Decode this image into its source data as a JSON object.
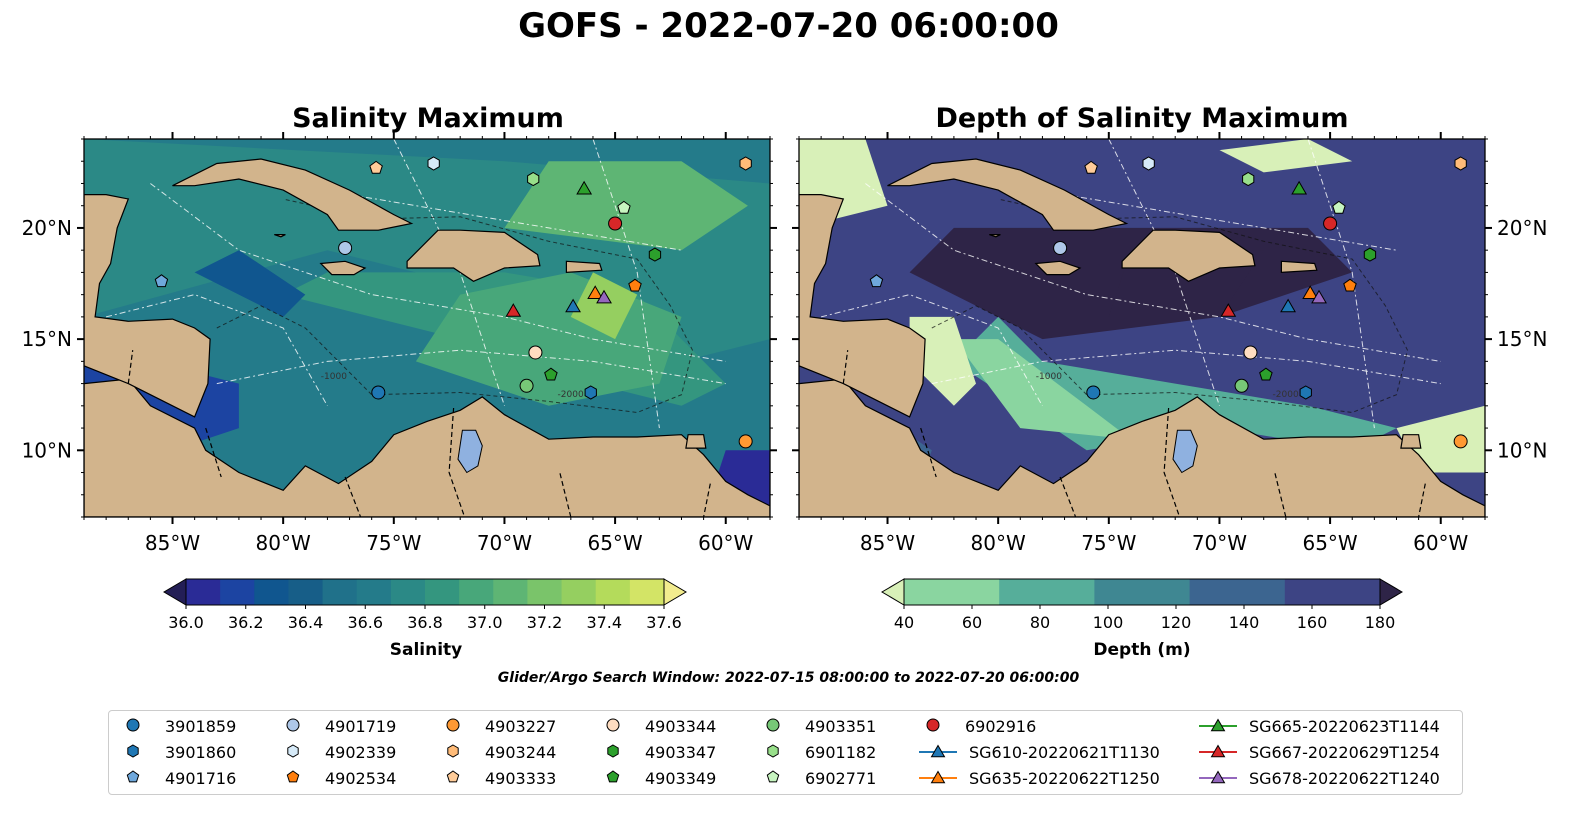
{
  "title": "GOFS - 2022-07-20 06:00:00",
  "search_window": "Glider/Argo Search Window: 2022-07-15 08:00:00 to 2022-07-20 06:00:00",
  "chart_data": [
    {
      "type": "heatmap",
      "title": "Salinity Maximum",
      "x_ticks": [
        "85°W",
        "80°W",
        "75°W",
        "70°W",
        "65°W",
        "60°W"
      ],
      "x_tick_values": [
        -85,
        -80,
        -75,
        -70,
        -65,
        -60
      ],
      "y_ticks": [
        "10°N",
        "15°N",
        "20°N"
      ],
      "y_tick_values": [
        10,
        15,
        20
      ],
      "xlim": [
        -89,
        -58
      ],
      "ylim": [
        7,
        24
      ],
      "colorbar": {
        "label": "Salinity",
        "ticks": [
          "36.0",
          "36.2",
          "36.4",
          "36.6",
          "36.8",
          "37.0",
          "37.2",
          "37.4",
          "37.6"
        ],
        "range": [
          36.0,
          37.6
        ],
        "extend": "both",
        "colors": [
          "#231e56",
          "#2a2b96",
          "#1c44a2",
          "#10568f",
          "#175e88",
          "#20718a",
          "#247b8a",
          "#2b8986",
          "#34967f",
          "#48a77a",
          "#5eb574",
          "#7ac46a",
          "#95cf60",
          "#b4db5b",
          "#d3e466",
          "#f2ec8e"
        ]
      }
    },
    {
      "type": "heatmap",
      "title": "Depth of Salinity Maximum",
      "x_ticks": [
        "85°W",
        "80°W",
        "75°W",
        "70°W",
        "65°W",
        "60°W"
      ],
      "x_tick_values": [
        -85,
        -80,
        -75,
        -70,
        -65,
        -60
      ],
      "y_ticks": [
        "10°N",
        "15°N",
        "20°N"
      ],
      "y_tick_values": [
        10,
        15,
        20
      ],
      "xlim": [
        -89,
        -58
      ],
      "ylim": [
        7,
        24
      ],
      "colorbar": {
        "label": "Depth (m)",
        "ticks": [
          "40",
          "60",
          "80",
          "100",
          "120",
          "140",
          "160",
          "180"
        ],
        "range": [
          40,
          180
        ],
        "extend": "both",
        "colors": [
          "#d8f0b8",
          "#8ad5a0",
          "#56ae9a",
          "#3f8792",
          "#3c6590",
          "#3d4484",
          "#2e2447"
        ]
      }
    }
  ],
  "observations": [
    {
      "id": "3901859",
      "lon": -75.7,
      "lat": 12.6,
      "marker": "circle",
      "color": "#1f77b4"
    },
    {
      "id": "3901860",
      "lon": -66.1,
      "lat": 12.6,
      "marker": "hexagon",
      "color": "#1f77b4"
    },
    {
      "id": "4901716",
      "lon": -85.5,
      "lat": 17.6,
      "marker": "pentagon",
      "color": "#6fa8dc"
    },
    {
      "id": "4901719",
      "lon": -77.2,
      "lat": 19.1,
      "marker": "circle",
      "color": "#aec7e8"
    },
    {
      "id": "4902339",
      "lon": -73.2,
      "lat": 22.9,
      "marker": "hexagon",
      "color": "#d6eaf8"
    },
    {
      "id": "4902534",
      "lon": -64.1,
      "lat": 17.4,
      "marker": "pentagon",
      "color": "#ff7f0e"
    },
    {
      "id": "4903227",
      "lon": -59.1,
      "lat": 10.4,
      "marker": "circle",
      "color": "#ff9933"
    },
    {
      "id": "4903244",
      "lon": -59.1,
      "lat": 22.9,
      "marker": "hexagon",
      "color": "#ffbb78"
    },
    {
      "id": "4903333",
      "lon": -75.8,
      "lat": 22.7,
      "marker": "pentagon",
      "color": "#ffcc99"
    },
    {
      "id": "4903344",
      "lon": -68.6,
      "lat": 14.4,
      "marker": "circle",
      "color": "#ffddc1"
    },
    {
      "id": "4903347",
      "lon": -63.2,
      "lat": 18.8,
      "marker": "hexagon",
      "color": "#2ca02c"
    },
    {
      "id": "4903349",
      "lon": -67.9,
      "lat": 13.4,
      "marker": "pentagon",
      "color": "#2ca02c"
    },
    {
      "id": "4903351",
      "lon": -69.0,
      "lat": 12.9,
      "marker": "circle",
      "color": "#77c877"
    },
    {
      "id": "6901182",
      "lon": -68.7,
      "lat": 22.2,
      "marker": "hexagon",
      "color": "#98df8a"
    },
    {
      "id": "6902771",
      "lon": -64.6,
      "lat": 20.9,
      "marker": "pentagon",
      "color": "#c7f5c0"
    },
    {
      "id": "6902916",
      "lon": -65.0,
      "lat": 20.2,
      "marker": "circle",
      "color": "#d62728"
    },
    {
      "id": "SG610-20220621T1130",
      "lon": -66.9,
      "lat": 16.5,
      "marker": "triangle",
      "color": "#1f77b4"
    },
    {
      "id": "SG635-20220622T1250",
      "lon": -65.9,
      "lat": 17.1,
      "marker": "triangle",
      "color": "#ff7f0e"
    },
    {
      "id": "SG665-20220623T1144",
      "lon": -66.4,
      "lat": 21.8,
      "marker": "triangle",
      "color": "#2ca02c"
    },
    {
      "id": "SG667-20220629T1254",
      "lon": -69.6,
      "lat": 16.3,
      "marker": "triangle",
      "color": "#d62728"
    },
    {
      "id": "SG678-20220622T1240",
      "lon": -65.5,
      "lat": 16.9,
      "marker": "triangle",
      "color": "#9467bd"
    }
  ],
  "contour_labels": [
    "-1000",
    "-2000"
  ],
  "land_color": "#d2b48c",
  "lake_color": "#8fb1e0"
}
